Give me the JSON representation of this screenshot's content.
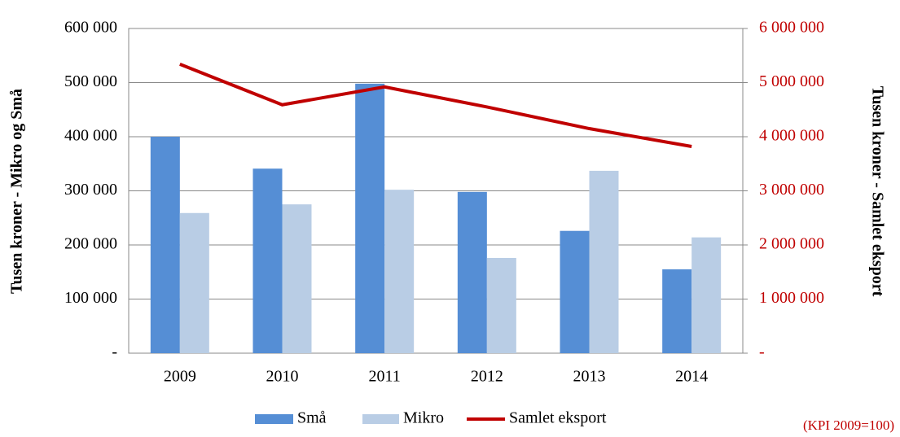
{
  "chart_data": {
    "type": "bar",
    "categories": [
      "2009",
      "2010",
      "2011",
      "2012",
      "2013",
      "2014"
    ],
    "series": [
      {
        "name": "Små",
        "color": "#558ed5",
        "values": [
          400000,
          341000,
          498000,
          298000,
          226000,
          155000
        ]
      },
      {
        "name": "Mikro",
        "color": "#b9cde5",
        "values": [
          259000,
          275000,
          302000,
          176000,
          337000,
          214000
        ]
      },
      {
        "name": "Samlet eksport",
        "color": "#c00000",
        "type": "line",
        "axis": "y2",
        "values": [
          5340000,
          4590000,
          4920000,
          4550000,
          4150000,
          3820000
        ]
      }
    ],
    "ylabel": "Tusen kroner - Mikro  og Små",
    "y2label": "Tusen kroner - Samlet eksport",
    "annotation": "(KPI 2009=100)",
    "ylim": [
      0,
      600000
    ],
    "yticks": [
      {
        "value": 0,
        "label": "-"
      },
      {
        "value": 100000,
        "label": "100 000"
      },
      {
        "value": 200000,
        "label": "200 000"
      },
      {
        "value": 300000,
        "label": "300 000"
      },
      {
        "value": 400000,
        "label": "400 000"
      },
      {
        "value": 500000,
        "label": "500 000"
      },
      {
        "value": 600000,
        "label": "600 000"
      }
    ],
    "y2lim": [
      0,
      6000000
    ],
    "y2ticks": [
      {
        "value": 0,
        "label": "-"
      },
      {
        "value": 1000000,
        "label": "1 000 000"
      },
      {
        "value": 2000000,
        "label": "2 000 000"
      },
      {
        "value": 3000000,
        "label": "3 000 000"
      },
      {
        "value": 4000000,
        "label": "4 000 000"
      },
      {
        "value": 5000000,
        "label": "5 000 000"
      },
      {
        "value": 6000000,
        "label": "6 000 000"
      }
    ],
    "grid": true,
    "legend": "bottom"
  }
}
